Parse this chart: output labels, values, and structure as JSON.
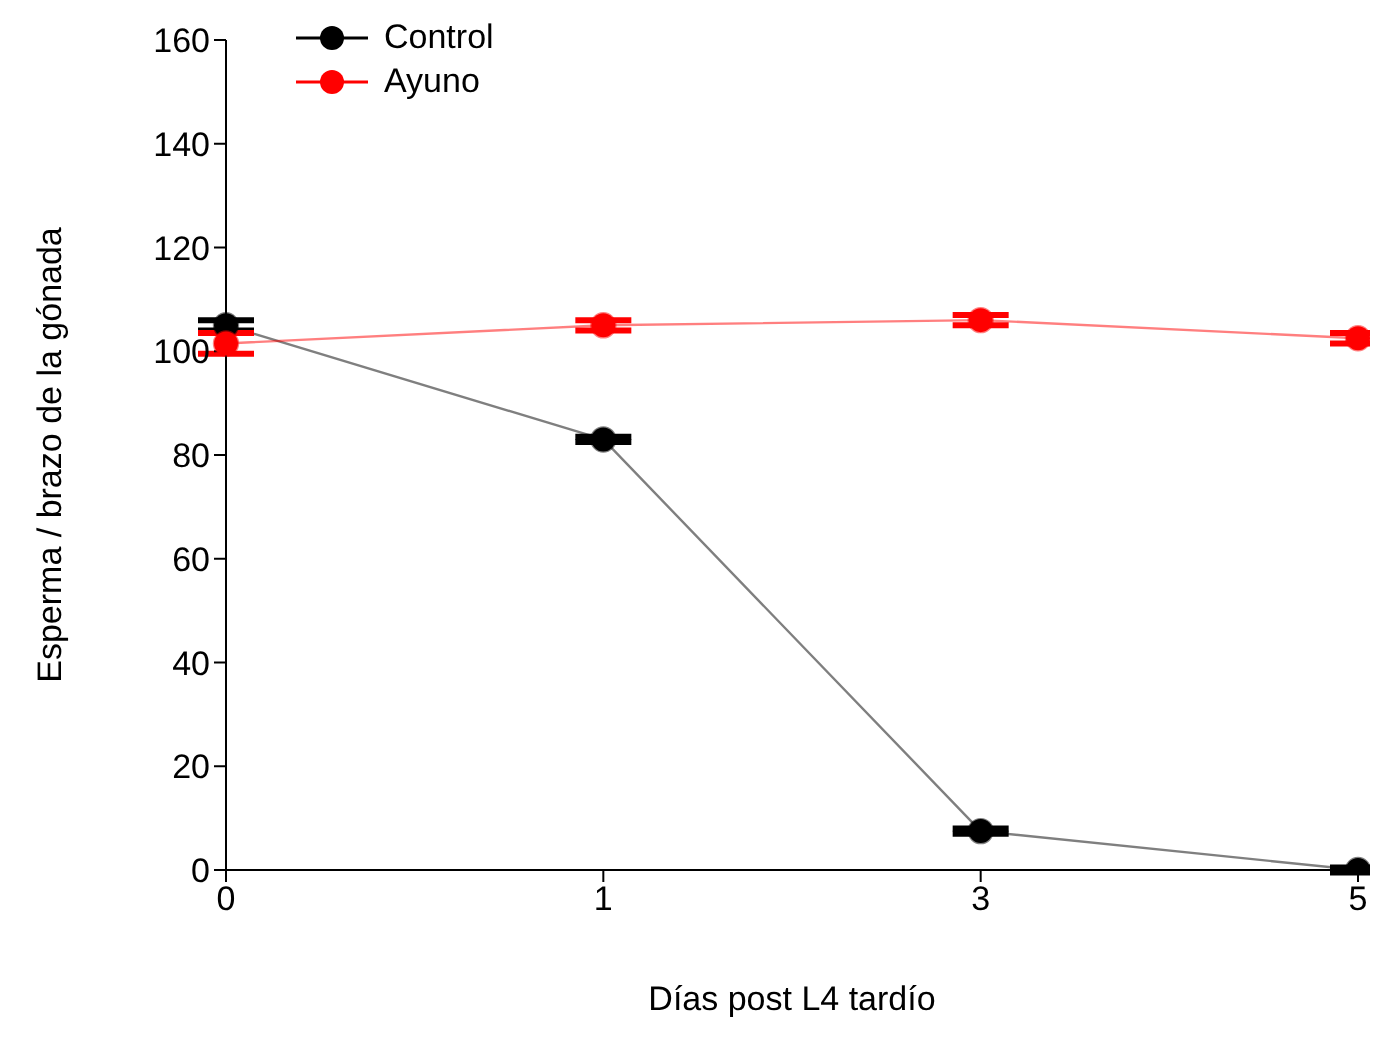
{
  "chart_data": {
    "type": "line",
    "xlabel": "Días post L4 tardío",
    "ylabel": "Esperma / brazo de la gónada",
    "categories": [
      "0",
      "1",
      "3",
      "5"
    ],
    "series": [
      {
        "name": "Control",
        "color": "#000000",
        "values": [
          105,
          83,
          7.5,
          0
        ],
        "errors": [
          1,
          0.5,
          0.5,
          0.5
        ]
      },
      {
        "name": "Ayuno",
        "color": "#ff0000",
        "values": [
          101.5,
          105,
          106,
          102.5
        ],
        "errors": [
          2,
          1,
          1,
          1
        ]
      }
    ],
    "ylim": [
      0,
      160
    ],
    "yticks": [
      0,
      20,
      40,
      60,
      80,
      100,
      120,
      140,
      160
    ],
    "grid": false,
    "legend": "top left",
    "marker": "circle",
    "line_style": "solid"
  }
}
